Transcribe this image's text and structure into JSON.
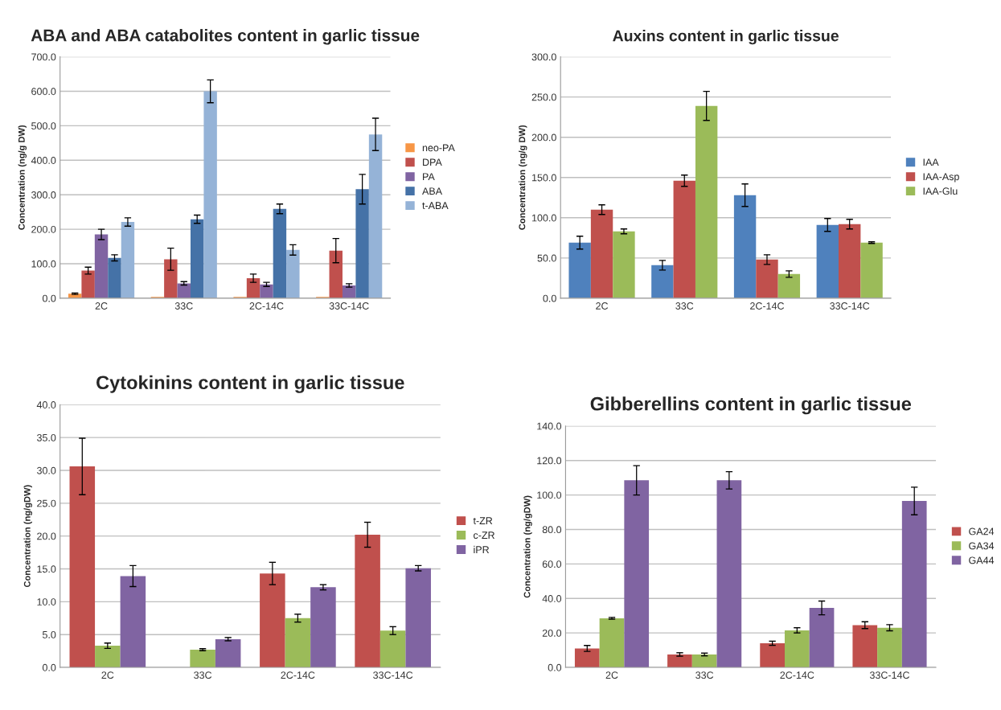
{
  "chart_data": [
    {
      "type": "bar",
      "title": "ABA and ABA catabolites content in garlic tissue",
      "ylabel": "Concentration (ng/g DW)",
      "categories": [
        "2C",
        "33C",
        "2C-14C",
        "33C-14C"
      ],
      "series": [
        {
          "name": "neo-PA",
          "color": "#f79646",
          "values": [
            13,
            4,
            4,
            4
          ],
          "errors": [
            2,
            null,
            null,
            null
          ]
        },
        {
          "name": "DPA",
          "color": "#c0504d",
          "values": [
            80,
            113,
            58,
            138
          ],
          "errors": [
            10,
            32,
            12,
            35
          ]
        },
        {
          "name": "PA",
          "color": "#8064a2",
          "values": [
            185,
            43,
            40,
            37
          ],
          "errors": [
            15,
            5,
            6,
            5
          ]
        },
        {
          "name": "ABA",
          "color": "#4572a7",
          "values": [
            117,
            229,
            259,
            316
          ],
          "errors": [
            9,
            12,
            14,
            43
          ]
        },
        {
          "name": "t-ABA",
          "color": "#95b3d7",
          "values": [
            221,
            600,
            140,
            475
          ],
          "errors": [
            12,
            33,
            15,
            47
          ]
        }
      ],
      "ylim": [
        0,
        700
      ],
      "yticks": [
        {
          "value": 0,
          "label": "0.0"
        },
        {
          "value": 100,
          "label": "100.0"
        },
        {
          "value": 200,
          "label": "200.0"
        },
        {
          "value": 300,
          "label": "300.0"
        },
        {
          "value": 400,
          "label": "400.0"
        },
        {
          "value": 500,
          "label": "500.0"
        },
        {
          "value": 600,
          "label": "600.0"
        },
        {
          "value": 700,
          "label": "700.0"
        }
      ],
      "grid": "y",
      "legend": "right"
    },
    {
      "type": "bar",
      "title": "Auxins content in garlic tissue",
      "ylabel": "Concentration (ng/g DW)",
      "categories": [
        "2C",
        "33C",
        "2C-14C",
        "33C-14C"
      ],
      "series": [
        {
          "name": "IAA",
          "color": "#4f81bd",
          "values": [
            69,
            41,
            128,
            91
          ],
          "errors": [
            8,
            6,
            14,
            8
          ]
        },
        {
          "name": "IAA-Asp",
          "color": "#c0504d",
          "values": [
            110,
            146,
            48,
            92
          ],
          "errors": [
            6,
            7,
            6,
            6
          ]
        },
        {
          "name": "IAA-Glu",
          "color": "#9bbb59",
          "values": [
            83,
            239,
            30,
            69
          ],
          "errors": [
            3,
            18,
            4,
            1
          ]
        }
      ],
      "ylim": [
        0,
        300
      ],
      "yticks": [
        {
          "value": 0,
          "label": "0.0"
        },
        {
          "value": 50,
          "label": "50.0"
        },
        {
          "value": 100,
          "label": "100.0"
        },
        {
          "value": 150,
          "label": "150.0"
        },
        {
          "value": 200,
          "label": "200.0"
        },
        {
          "value": 250,
          "label": "250.0"
        },
        {
          "value": 300,
          "label": "300.0"
        }
      ],
      "grid": "y",
      "legend": "right"
    },
    {
      "type": "bar",
      "title": "Cytokinins content in garlic tissue",
      "ylabel": "Concentration (ng/gDW)",
      "categories": [
        "2C",
        "33C",
        "2C-14C",
        "33C-14C"
      ],
      "series": [
        {
          "name": "t-ZR",
          "color": "#c0504d",
          "values": [
            30.6,
            null,
            14.3,
            20.2
          ],
          "errors": [
            4.3,
            null,
            1.7,
            1.9
          ]
        },
        {
          "name": "c-ZR",
          "color": "#9bbb59",
          "values": [
            3.3,
            2.7,
            7.5,
            5.6
          ],
          "errors": [
            0.4,
            0.15,
            0.6,
            0.6
          ]
        },
        {
          "name": "iPR",
          "color": "#8064a2",
          "values": [
            13.9,
            4.3,
            12.2,
            15.1
          ],
          "errors": [
            1.6,
            0.25,
            0.4,
            0.4
          ]
        }
      ],
      "ylim": [
        0,
        40
      ],
      "yticks": [
        {
          "value": 0,
          "label": "0.0"
        },
        {
          "value": 5,
          "label": "5.0"
        },
        {
          "value": 10,
          "label": "10.0"
        },
        {
          "value": 15,
          "label": "15.0"
        },
        {
          "value": 20,
          "label": "20.0"
        },
        {
          "value": 25,
          "label": "25.0"
        },
        {
          "value": 30,
          "label": "30.0"
        },
        {
          "value": 35,
          "label": "35.0"
        },
        {
          "value": 40,
          "label": "40.0"
        }
      ],
      "grid": "y",
      "legend": "right"
    },
    {
      "type": "bar",
      "title": "Gibberellins content in garlic tissue",
      "ylabel": "Concentration (ng/gDW)",
      "categories": [
        "2C",
        "33C",
        "2C-14C",
        "33C-14C"
      ],
      "series": [
        {
          "name": "GA24",
          "color": "#c0504d",
          "values": [
            11,
            7.5,
            14,
            24.5
          ],
          "errors": [
            1.7,
            1,
            1.2,
            2
          ]
        },
        {
          "name": "GA34",
          "color": "#9bbb59",
          "values": [
            28.5,
            7.5,
            21.5,
            23
          ],
          "errors": [
            0.5,
            0.8,
            1.5,
            1.8
          ]
        },
        {
          "name": "GA44",
          "color": "#8064a2",
          "values": [
            108.5,
            108.5,
            34.5,
            96.5
          ],
          "errors": [
            8.5,
            5,
            4,
            8
          ]
        }
      ],
      "ylim": [
        0,
        140
      ],
      "yticks": [
        {
          "value": 0,
          "label": "0.0"
        },
        {
          "value": 20,
          "label": "20.0"
        },
        {
          "value": 40,
          "label": "40.0"
        },
        {
          "value": 60,
          "label": "60.0"
        },
        {
          "value": 80,
          "label": "80.0"
        },
        {
          "value": 100,
          "label": "100.0"
        },
        {
          "value": 120,
          "label": "120.0"
        },
        {
          "value": 140,
          "label": "140.0"
        }
      ],
      "grid": "y",
      "legend": "right"
    }
  ]
}
